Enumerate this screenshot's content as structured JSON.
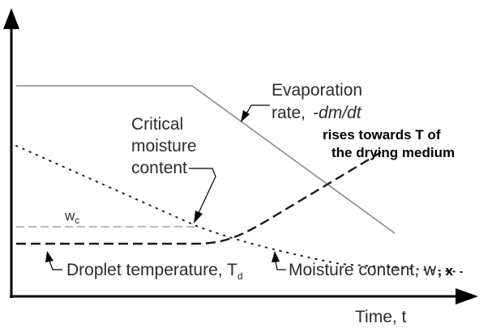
{
  "diagram": {
    "labels": {
      "evaporation_line1": "Evaporation",
      "evaporation_line2_prefix": "rate,",
      "evaporation_line2_expr": "-dm/dt",
      "rises_line1": "rises towards T of",
      "rises_line2": "the drying medium",
      "critical_line1": "Critical",
      "critical_line2": "moisture",
      "critical_line3": "content",
      "wc_main": "w",
      "wc_sub": "c",
      "droplet_main": "Droplet temperature, T",
      "droplet_sub": "d",
      "moisture_main": "Moisture content, w",
      "moisture_x": ", x",
      "time_axis": "Time, t"
    },
    "colors": {
      "axis": "#000000",
      "evaporation_line": "#8a8a8a",
      "temperature_line": "#1a1a1a",
      "moisture_line": "#222222",
      "critical_guide": "#a0a0a0",
      "text": "#2b2b2b"
    }
  }
}
